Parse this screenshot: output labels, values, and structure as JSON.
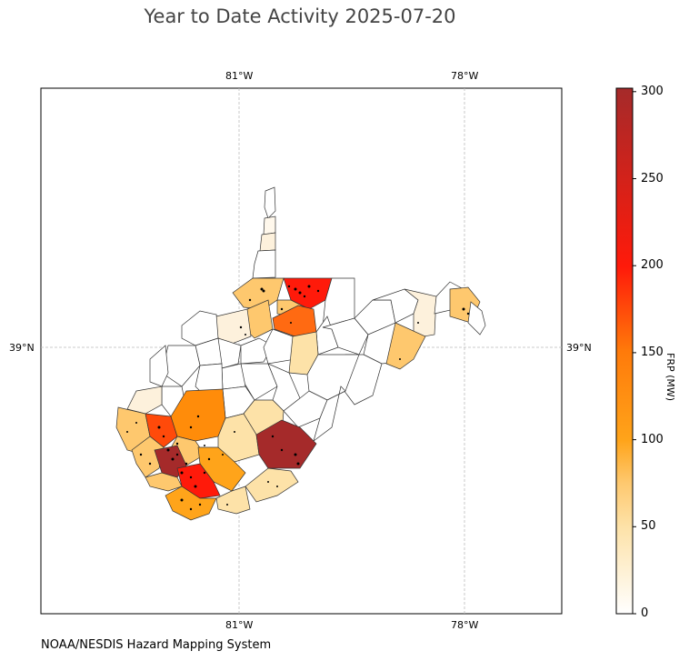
{
  "title": "Year to Date Activity 2025-07-20",
  "footer": "NOAA/NESDIS Hazard Mapping System",
  "lon_labels": [
    "81°W",
    "78°W"
  ],
  "lat_labels": [
    "39°N"
  ],
  "colorbar": {
    "label": "FRP (MW)",
    "ticks": [
      "0",
      "50",
      "100",
      "150",
      "200",
      "250",
      "300"
    ],
    "tick_values": [
      0,
      50,
      100,
      150,
      200,
      250,
      300
    ],
    "max": 302,
    "colors": [
      "#ffffff",
      "#fde2a8",
      "#fec86e",
      "#ffa41a",
      "#ff7a0a",
      "#ff1a0a",
      "#a52a2a"
    ]
  },
  "colors": {
    "county_border": "#333333",
    "grid": "#bbbbbb",
    "fire_point": "#000000"
  }
}
